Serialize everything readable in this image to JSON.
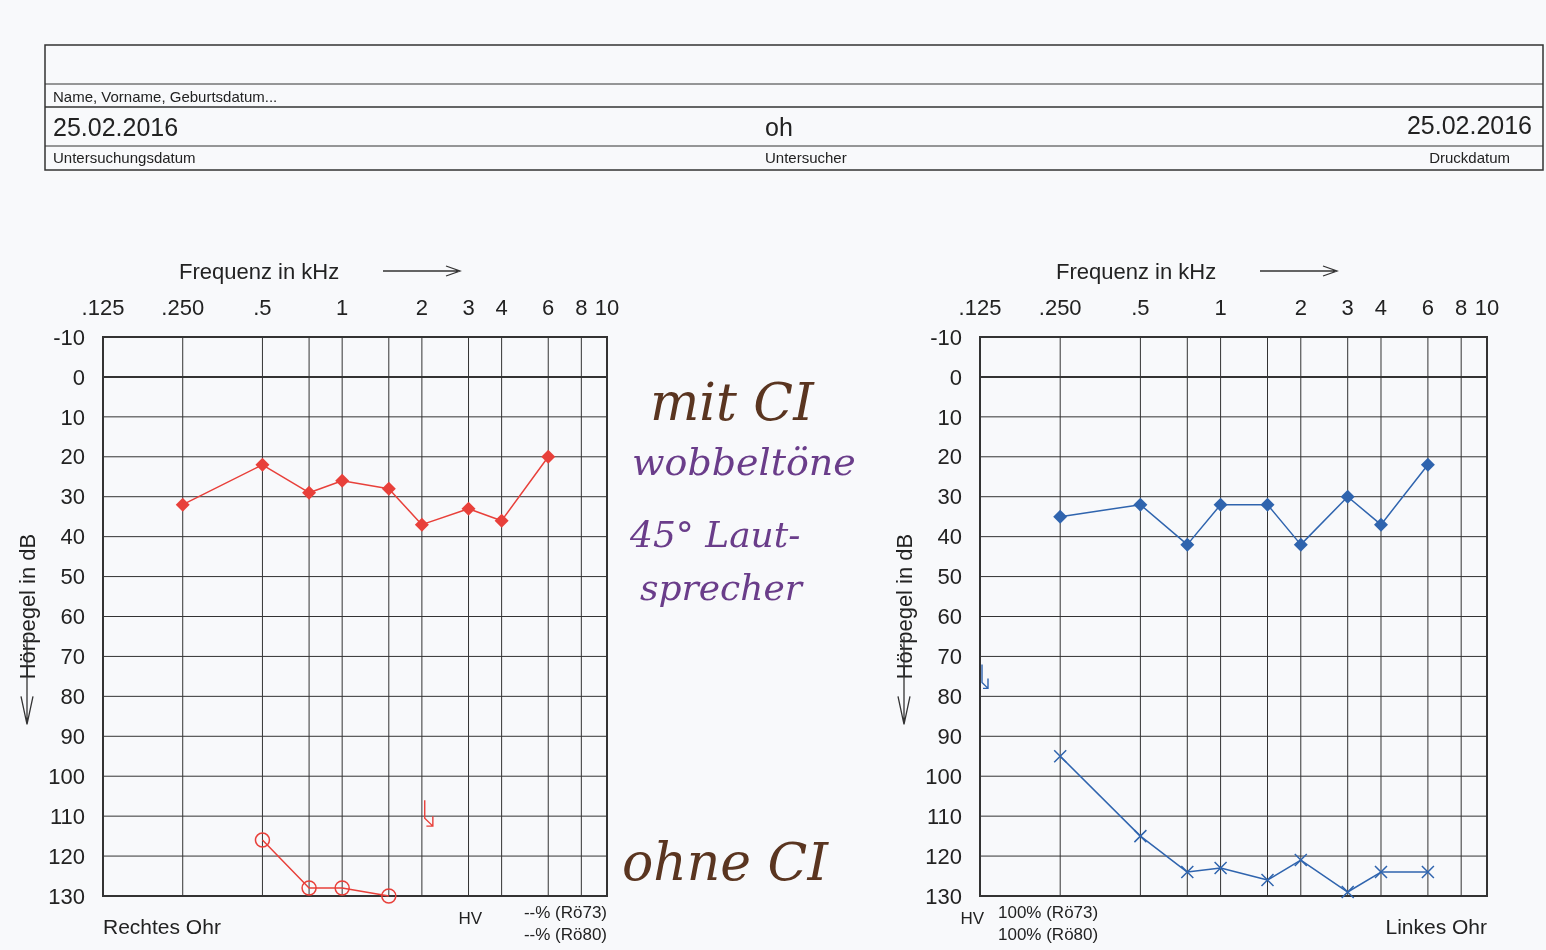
{
  "chart_data": [
    {
      "type": "other",
      "annotations": [
        "Name, Vorname, Geburtsdatum...",
        "25.02.2016",
        "Untersuchungsdatum",
        "oh",
        "Untersucher",
        "25.02.2016",
        "Druckdatum",
        "mit CI",
        "wobbeltöne",
        "45° Laut-",
        "sprecher",
        "ohne CI"
      ]
    },
    {
      "type": "line",
      "xlabel": "Frequenz in kHz",
      "ylabel": "Hörpegel in dB",
      "log": "x",
      "xlim": [
        0.125,
        10
      ],
      "xticks": [
        {
          "value": 0.125,
          "label": ".125"
        },
        {
          "value": 0.25,
          "label": ".250"
        },
        {
          "value": 0.5,
          "label": ".5"
        },
        {
          "value": 0.75,
          "label": null
        },
        1,
        {
          "value": 1.5,
          "label": null
        },
        2,
        3,
        4,
        6,
        8,
        10
      ],
      "ylim": [
        130,
        -10
      ],
      "yticks": [
        -10,
        0,
        10,
        20,
        30,
        40,
        50,
        60,
        70,
        80,
        90,
        100,
        110,
        120,
        130
      ],
      "grid": true,
      "series": [
        {
          "color": "#e8403a",
          "marker": "diamond",
          "x": [
            0.25,
            0.5,
            0.75,
            1,
            1.5,
            2,
            3,
            4,
            6
          ],
          "values": [
            32,
            22,
            29,
            26,
            28,
            37,
            33,
            36,
            20
          ]
        },
        {
          "color": "#e8403a",
          "marker": "circle",
          "x": [
            0.5,
            0.75,
            1,
            1.5
          ],
          "values": [
            116,
            128,
            128,
            130
          ]
        }
      ],
      "annotations": [
        "Rechtes Ohr",
        "HV",
        "--% (Rö73)",
        "--% (Rö80)"
      ]
    },
    {
      "type": "line",
      "xlabel": "Frequenz in kHz",
      "ylabel": "Hörpegel in dB",
      "log": "x",
      "xlim": [
        0.125,
        10
      ],
      "xticks": [
        {
          "value": 0.125,
          "label": ".125"
        },
        {
          "value": 0.25,
          "label": ".250"
        },
        {
          "value": 0.5,
          "label": ".5"
        },
        {
          "value": 0.75,
          "label": null
        },
        1,
        {
          "value": 1.5,
          "label": null
        },
        2,
        3,
        4,
        6,
        8,
        10
      ],
      "ylim": [
        130,
        -10
      ],
      "yticks": [
        -10,
        0,
        10,
        20,
        30,
        40,
        50,
        60,
        70,
        80,
        90,
        100,
        110,
        120,
        130
      ],
      "grid": true,
      "series": [
        {
          "color": "#2f64ae",
          "marker": "diamond",
          "x": [
            0.25,
            0.5,
            0.75,
            1,
            1.5,
            2,
            3,
            4,
            6
          ],
          "values": [
            35,
            32,
            42,
            32,
            32,
            42,
            30,
            37,
            22
          ]
        },
        {
          "color": "#2f64ae",
          "marker": "cross",
          "x": [
            0.25,
            0.5,
            0.75,
            1,
            1.5,
            2,
            3,
            4,
            6
          ],
          "values": [
            95,
            115,
            124,
            123,
            126,
            121,
            129,
            124,
            124
          ]
        }
      ],
      "annotations": [
        "HV",
        "100% (Rö73)",
        "100% (Rö80)",
        "Linkes Ohr"
      ]
    }
  ]
}
